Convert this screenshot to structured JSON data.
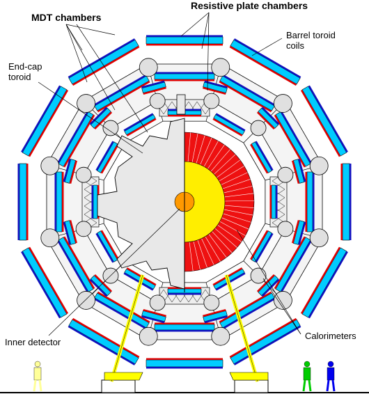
{
  "labels": {
    "mdt": "MDT chambers",
    "rpc": "Resistive plate chambers",
    "barrel_line1": "Barrel toroid",
    "barrel_line2": "coils",
    "endcap_line1": "End-cap",
    "endcap_line2": "toroid",
    "inner": "Inner detector",
    "calorimeters": "Calorimeters"
  },
  "colors": {
    "mdt_fill": "#00ccff",
    "rpc_red": "#e00000",
    "rpc_blue": "#1010c0",
    "coil_grey": "#e0e0e0",
    "calorimeter_red": "#ee1111",
    "calorimeter_yellow": "#ffee00",
    "inner_orange": "#ff9900",
    "support_yellow": "#ffff00",
    "person_light": "#ffff99",
    "person_green": "#00cc00",
    "person_blue": "#0000ee"
  },
  "icons": [
    "person-figure-light",
    "person-figure-green",
    "person-figure-blue"
  ]
}
